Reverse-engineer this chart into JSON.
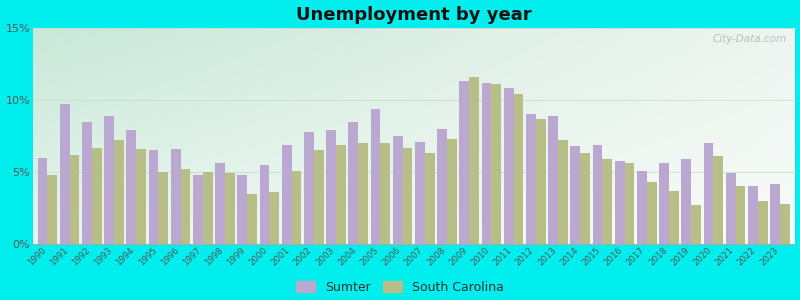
{
  "title": "Unemployment by year",
  "background_color": "#00EEEE",
  "sumter_color": "#BBA8D0",
  "sc_color": "#B8BE88",
  "ytick_vals": [
    0,
    5,
    10,
    15
  ],
  "ylabel_ticks": [
    "0%",
    "5%",
    "10%",
    "15%"
  ],
  "ylim": [
    0,
    15
  ],
  "years": [
    1990,
    1991,
    1992,
    1993,
    1994,
    1995,
    1996,
    1997,
    1998,
    1999,
    2000,
    2001,
    2002,
    2003,
    2004,
    2005,
    2006,
    2007,
    2008,
    2009,
    2010,
    2011,
    2012,
    2013,
    2014,
    2015,
    2016,
    2017,
    2018,
    2019,
    2020,
    2021,
    2022,
    2023
  ],
  "sumter": [
    6.0,
    9.7,
    8.5,
    8.9,
    7.9,
    6.5,
    6.6,
    4.8,
    5.6,
    4.8,
    5.5,
    6.9,
    7.8,
    7.9,
    8.5,
    9.4,
    7.5,
    7.1,
    8.0,
    11.3,
    11.2,
    10.8,
    9.0,
    8.9,
    6.8,
    6.9,
    5.8,
    5.1,
    5.6,
    5.9,
    7.0,
    4.9,
    4.0,
    4.2
  ],
  "south_carolina": [
    4.8,
    6.2,
    6.7,
    7.2,
    6.6,
    5.0,
    5.2,
    5.0,
    4.9,
    3.5,
    3.6,
    5.1,
    6.5,
    6.9,
    7.0,
    7.0,
    6.7,
    6.3,
    7.3,
    11.6,
    11.1,
    10.4,
    8.7,
    7.2,
    6.3,
    5.9,
    5.6,
    4.3,
    3.7,
    2.7,
    6.1,
    4.0,
    3.0,
    2.8
  ],
  "legend_labels": [
    "Sumter",
    "South Carolina"
  ],
  "watermark": "City-Data.com",
  "bg_grad_left": "#ddf0e4",
  "bg_grad_right": "#f5f8f0"
}
